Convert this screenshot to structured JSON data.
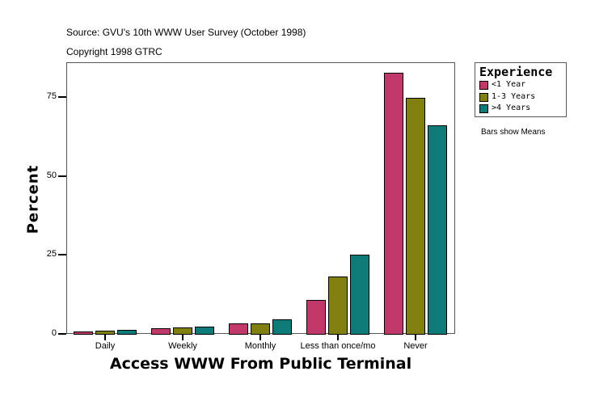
{
  "header": {
    "source": "Source: GVU's 10th WWW User Survey (October 1998)",
    "copyright": "Copyright 1998 GTRC"
  },
  "legend": {
    "title": "Experience",
    "items": [
      {
        "label": "<1 Year",
        "color": "#C0396A"
      },
      {
        "label": "1-3 Years",
        "color": "#808010"
      },
      {
        "label": ">4 Years",
        "color": "#0E7B78"
      }
    ]
  },
  "note": "Bars show Means",
  "axes": {
    "y_title": "Percent",
    "x_title": "Access WWW From Public Terminal",
    "y_ticks": [
      "0",
      "25",
      "50",
      "75"
    ]
  },
  "chart_data": {
    "type": "bar",
    "title": "Access WWW From Public Terminal",
    "subtitle": "Source: GVU's 10th WWW User Survey (October 1998)",
    "xlabel": "Access WWW From Public Terminal",
    "ylabel": "Percent",
    "ylim": [
      0,
      86
    ],
    "yticks": [
      0,
      25,
      50,
      75
    ],
    "grid": false,
    "legend_position": "right",
    "legend_title": "Experience",
    "categories": [
      "Daily",
      "Weekly",
      "Monthly",
      "Less than once/mo",
      "Never"
    ],
    "series": [
      {
        "name": "<1 Year",
        "color": "#C0396A",
        "values": [
          0.8,
          1.7,
          3.3,
          10.7,
          82.5
        ]
      },
      {
        "name": "1-3 Years",
        "color": "#808010",
        "values": [
          1.0,
          2.0,
          3.3,
          18.2,
          74.8
        ]
      },
      {
        "name": ">4 Years",
        "color": "#0E7B78",
        "values": [
          1.3,
          2.2,
          4.5,
          25.1,
          65.9
        ]
      }
    ],
    "annotations": [
      "Bars show Means",
      "Copyright 1998 GTRC"
    ]
  }
}
